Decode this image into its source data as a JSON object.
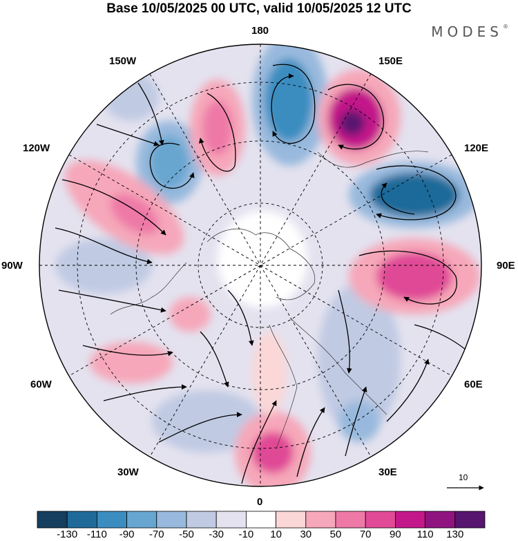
{
  "title": "Base 10/05/2025 00 UTC, valid 10/05/2025 12 UTC",
  "brand": "MODES",
  "brand_mark": "®",
  "longitude_labels": {
    "top": "180",
    "top_left": "150W",
    "top_right": "150E",
    "upper_left": "120W",
    "upper_right": "120E",
    "left": "90W",
    "right": "90E",
    "lower_left": "60W",
    "lower_right": "60E",
    "bottom_left": "30W",
    "bottom_right": "30E",
    "bottom": "0"
  },
  "vector_reference": "10",
  "colorbar": {
    "colors": [
      "#163e5e",
      "#1f6a99",
      "#3b8dc0",
      "#67a6d0",
      "#98b9dd",
      "#c0cae3",
      "#e4e2ef",
      "#ffffff",
      "#fbd7d7",
      "#f6a7b9",
      "#ee79a7",
      "#e04a96",
      "#c2188a",
      "#901480",
      "#58156f"
    ],
    "labels": [
      "-130",
      "-110",
      "-90",
      "-70",
      "-50",
      "-30",
      "-10",
      "10",
      "30",
      "50",
      "70",
      "90",
      "110",
      "130"
    ]
  },
  "anomaly_centers": [
    {
      "sign": "negative",
      "level": 4,
      "lon_label": "165W region"
    },
    {
      "sign": "positive",
      "level": 3,
      "lon_label": "165W region"
    },
    {
      "sign": "positive",
      "level": 5,
      "lon_label": "165E region"
    },
    {
      "sign": "negative",
      "level": 5,
      "lon_label": "120E region"
    },
    {
      "sign": "positive",
      "level": 4,
      "lon_label": "90E region"
    },
    {
      "sign": "positive",
      "level": 3,
      "lon_label": "120W region"
    },
    {
      "sign": "negative",
      "level": 2,
      "lon_label": "140W region"
    }
  ]
}
